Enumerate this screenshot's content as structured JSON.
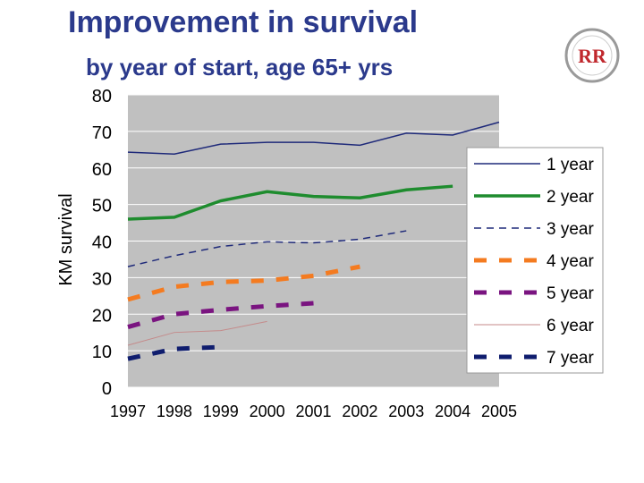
{
  "header": {
    "title": "Improvement in survival",
    "subtitle": "by year of start, age 65+ yrs"
  },
  "logo": {
    "text": "RR",
    "icon": "renal-registry-logo-icon"
  },
  "chart_data": {
    "type": "line",
    "title": "Improvement in survival",
    "subtitle": "by year of start, age 65+ yrs",
    "xlabel": "",
    "ylabel": "KM survival",
    "ylim": [
      0,
      80
    ],
    "yticks": [
      0,
      10,
      20,
      30,
      40,
      50,
      60,
      70,
      80
    ],
    "categories": [
      "1997",
      "1998",
      "1999",
      "2000",
      "2001",
      "2002",
      "2003",
      "2004",
      "2005"
    ],
    "grid": true,
    "plot_background": "#c0c0c0",
    "legend_position": "right",
    "series": [
      {
        "name": "1 year",
        "color": "#1f2a7a",
        "style": "solid-thin",
        "values": [
          64.3,
          63.8,
          66.5,
          67.0,
          67.0,
          66.2,
          69.5,
          69.0,
          72.5
        ]
      },
      {
        "name": "2 year",
        "color": "#1e8c2e",
        "style": "solid-thick",
        "values": [
          46.0,
          46.5,
          51.0,
          53.5,
          52.2,
          51.8,
          54.0,
          55.0,
          null
        ]
      },
      {
        "name": "3 year",
        "color": "#1f2a7a",
        "style": "dashed-thin",
        "values": [
          33.0,
          36.0,
          38.5,
          39.8,
          39.5,
          40.5,
          42.8,
          null,
          null
        ]
      },
      {
        "name": "4 year",
        "color": "#f47b20",
        "style": "dashed-thick",
        "values": [
          24.0,
          27.5,
          28.8,
          29.2,
          30.5,
          33.0,
          null,
          null,
          null
        ]
      },
      {
        "name": "5 year",
        "color": "#7a1480",
        "style": "dashed-thick",
        "values": [
          16.5,
          20.0,
          21.2,
          22.2,
          23.0,
          null,
          null,
          null,
          null
        ]
      },
      {
        "name": "6 year",
        "color": "#c48a8a",
        "style": "solid-hair",
        "values": [
          11.5,
          15.0,
          15.5,
          18.0,
          null,
          null,
          null,
          null,
          null
        ]
      },
      {
        "name": "7 year",
        "color": "#0f1d6e",
        "style": "dashed-thick",
        "values": [
          7.8,
          10.5,
          11.0,
          null,
          null,
          null,
          null,
          null,
          null
        ]
      }
    ]
  }
}
